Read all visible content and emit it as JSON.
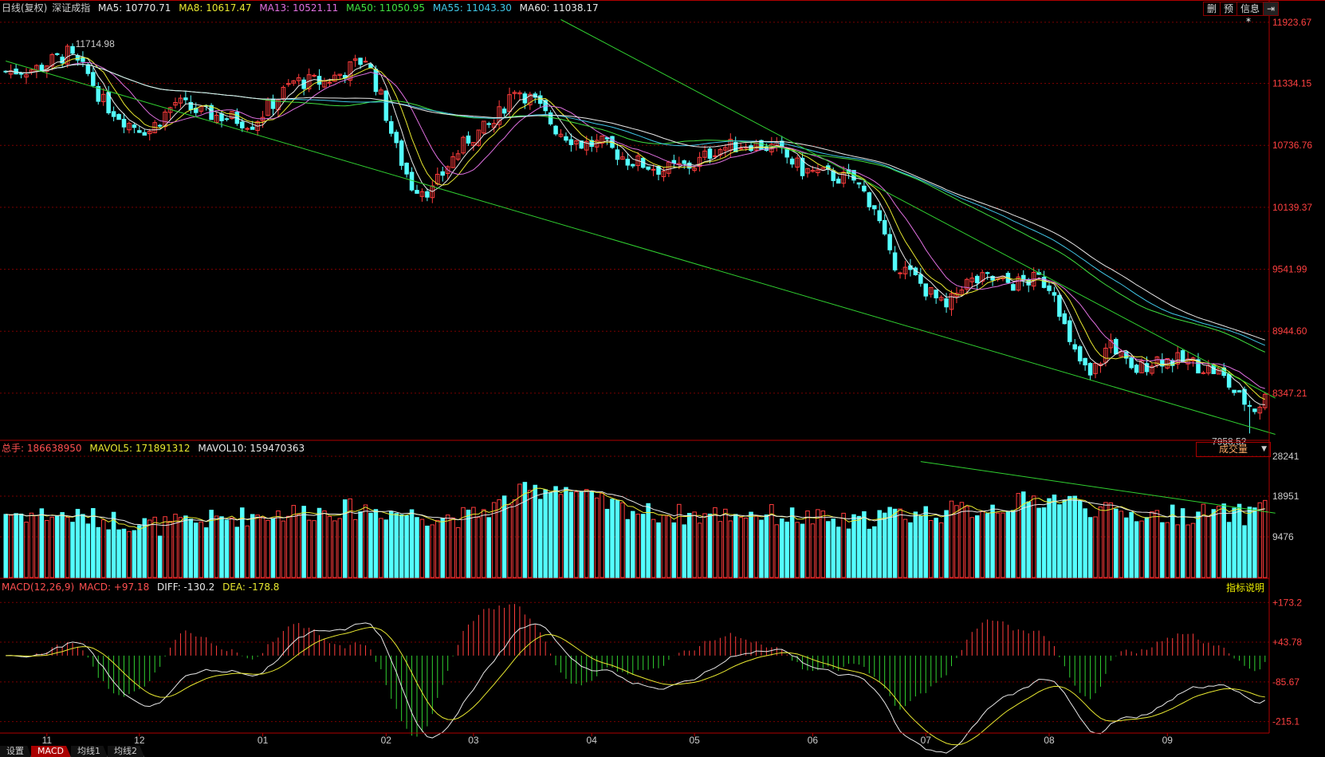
{
  "header": {
    "period": "日线(复权)",
    "name": "深证成指",
    "ma": [
      {
        "label": "MA5: 10770.71",
        "color": "#e8e8e8"
      },
      {
        "label": "MA8: 10617.47",
        "color": "#e8e830"
      },
      {
        "label": "MA13: 10521.11",
        "color": "#e070e0"
      },
      {
        "label": "MA50: 11050.95",
        "color": "#40e040"
      },
      {
        "label": "MA55: 11043.30",
        "color": "#40c8e8"
      },
      {
        "label": "MA60: 11038.17",
        "color": "#e8e8e8"
      }
    ],
    "buttons": [
      "删",
      "预",
      "信息",
      "⇥"
    ],
    "star": "*"
  },
  "volume_header": {
    "total_label": "总手: 186638950",
    "mavol5": "MAVOL5: 171891312",
    "mavol10": "MAVOL10: 159470363",
    "button": "成交量",
    "button_arrow": "▼"
  },
  "macd_header": {
    "label": "MACD(12,26,9)",
    "macd": "MACD: +97.18",
    "diff": "DIFF: -130.2",
    "dea": "DEA: -178.8",
    "button": "指标说明"
  },
  "tabs": [
    {
      "label": "设置",
      "active": false
    },
    {
      "label": "MACD",
      "active": true
    },
    {
      "label": "均线1",
      "active": false
    },
    {
      "label": "均线2",
      "active": false
    }
  ],
  "colors": {
    "up": "#ff3c3c",
    "down": "#54ffff",
    "grid": "#7a0000",
    "axis": "#b00000",
    "trend": "#30d030"
  },
  "chart_data": {
    "type": "candlestick",
    "price_axis": {
      "ticks": [
        "11923.67",
        "11334.15",
        "10736.76",
        "10139.37",
        "9541.99",
        "8944.60",
        "8347.21"
      ],
      "range": [
        7900,
        12000
      ]
    },
    "volume_axis": {
      "ticks": [
        "28241",
        "18951",
        "9476"
      ],
      "max": 28241
    },
    "macd_axis": {
      "ticks": [
        "+173.2",
        "+43.78",
        "-85.67",
        "-215.1"
      ],
      "range": [
        -250,
        200
      ]
    },
    "x_labels": [
      "11",
      "12",
      "01",
      "02",
      "03",
      "04",
      "05",
      "06",
      "07",
      "08",
      "09"
    ],
    "x_label_index": [
      8,
      26,
      50,
      74,
      91,
      114,
      134,
      157,
      179,
      203,
      226
    ],
    "annotations": {
      "high": "11714.98",
      "high_index": 12,
      "low": "7958.52",
      "low_index": 242
    },
    "series": [
      {
        "name": "MA5",
        "color": "#e8e8e8"
      },
      {
        "name": "MA8",
        "color": "#e8e830"
      },
      {
        "name": "MA13",
        "color": "#e070e0"
      },
      {
        "name": "MA50",
        "color": "#40e040"
      },
      {
        "name": "MA55",
        "color": "#40c8e8"
      },
      {
        "name": "MA60",
        "color": "#e8e8e8"
      }
    ],
    "close_anchors": [
      [
        0,
        11450
      ],
      [
        6,
        11480
      ],
      [
        12,
        11620
      ],
      [
        16,
        11420
      ],
      [
        19,
        11150
      ],
      [
        24,
        10950
      ],
      [
        28,
        10880
      ],
      [
        33,
        11150
      ],
      [
        38,
        11050
      ],
      [
        44,
        11000
      ],
      [
        48,
        10950
      ],
      [
        52,
        11150
      ],
      [
        56,
        11350
      ],
      [
        62,
        11350
      ],
      [
        66,
        11450
      ],
      [
        70,
        11580
      ],
      [
        73,
        11200
      ],
      [
        76,
        10700
      ],
      [
        79,
        10350
      ],
      [
        83,
        10300
      ],
      [
        86,
        10550
      ],
      [
        90,
        10800
      ],
      [
        95,
        10950
      ],
      [
        99,
        11300
      ],
      [
        103,
        11150
      ],
      [
        107,
        10900
      ],
      [
        112,
        10750
      ],
      [
        116,
        10750
      ],
      [
        121,
        10600
      ],
      [
        128,
        10500
      ],
      [
        134,
        10550
      ],
      [
        138,
        10700
      ],
      [
        145,
        10760
      ],
      [
        150,
        10700
      ],
      [
        155,
        10500
      ],
      [
        160,
        10450
      ],
      [
        165,
        10400
      ],
      [
        169,
        10150
      ],
      [
        172,
        9650
      ],
      [
        177,
        9450
      ],
      [
        183,
        9150
      ],
      [
        186,
        9400
      ],
      [
        191,
        9450
      ],
      [
        196,
        9400
      ],
      [
        201,
        9450
      ],
      [
        204,
        9350
      ],
      [
        207,
        8800
      ],
      [
        211,
        8500
      ],
      [
        215,
        8850
      ],
      [
        219,
        8550
      ],
      [
        224,
        8680
      ],
      [
        230,
        8650
      ],
      [
        236,
        8550
      ],
      [
        240,
        8300
      ],
      [
        243,
        8200
      ],
      [
        245,
        8300
      ]
    ],
    "volume_anchors": [
      [
        0,
        15000
      ],
      [
        10,
        14500
      ],
      [
        20,
        13500
      ],
      [
        30,
        12000
      ],
      [
        48,
        14500
      ],
      [
        60,
        15500
      ],
      [
        70,
        16000
      ],
      [
        80,
        14500
      ],
      [
        90,
        14000
      ],
      [
        95,
        16500
      ],
      [
        100,
        19500
      ],
      [
        108,
        21500
      ],
      [
        115,
        17500
      ],
      [
        125,
        15000
      ],
      [
        135,
        14500
      ],
      [
        145,
        15000
      ],
      [
        155,
        14000
      ],
      [
        165,
        12500
      ],
      [
        170,
        14500
      ],
      [
        180,
        15000
      ],
      [
        190,
        16000
      ],
      [
        200,
        18000
      ],
      [
        205,
        18500
      ],
      [
        215,
        15000
      ],
      [
        225,
        14500
      ],
      [
        235,
        15000
      ],
      [
        242,
        14500
      ],
      [
        245,
        19500
      ]
    ],
    "trend_lines": [
      {
        "from": [
          0,
          11550
        ],
        "to": [
          247,
          7950
        ]
      },
      {
        "from": [
          108,
          11950
        ],
        "to": [
          247,
          8300
        ]
      }
    ],
    "volume_trend_line": {
      "from": [
        178,
        27000
      ],
      "to": [
        247,
        15000
      ]
    },
    "candle_count": 246
  }
}
